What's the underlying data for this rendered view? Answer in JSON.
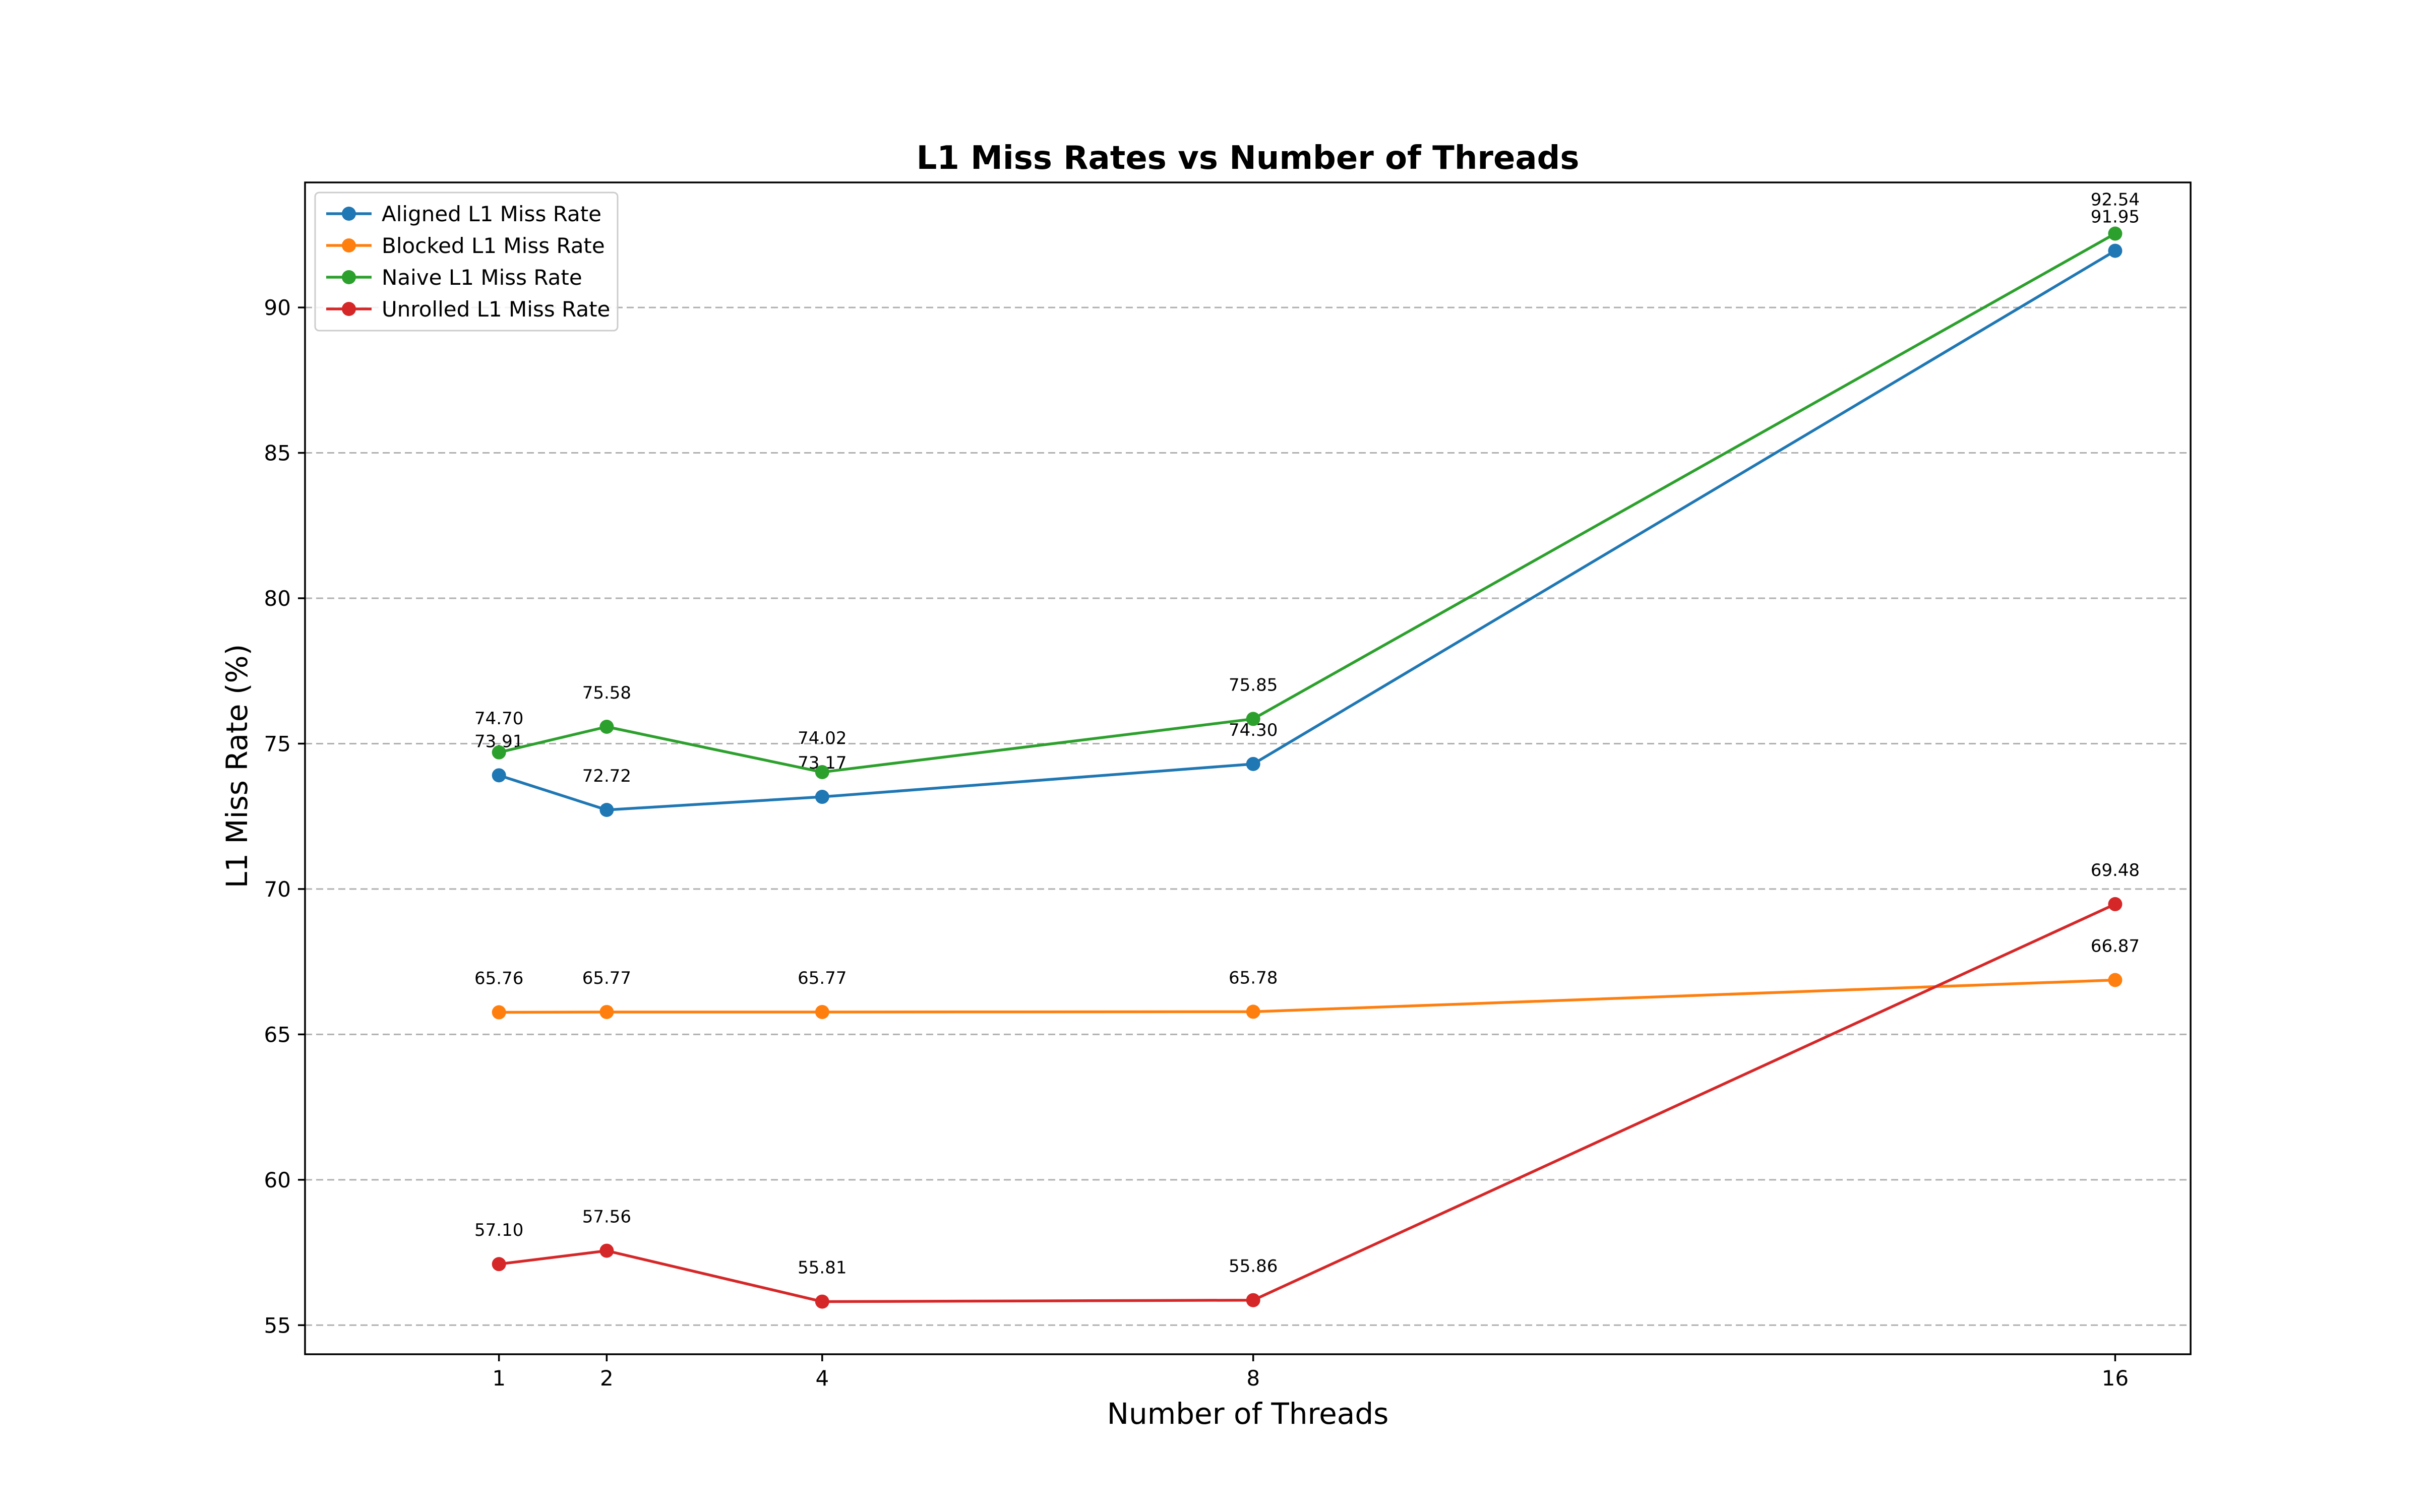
{
  "chart_data": {
    "type": "line",
    "title": "L1 Miss Rates vs Number of Threads",
    "xlabel": "Number of Threads",
    "ylabel": "L1 Miss Rate (%)",
    "x": [
      1,
      2,
      4,
      8,
      16
    ],
    "x_tick_labels": [
      "1",
      "2",
      "4",
      "8",
      "16"
    ],
    "xlim": [
      -0.8,
      16.7
    ],
    "ylim": [
      54.0,
      94.3
    ],
    "y_ticks": [
      55,
      60,
      65,
      70,
      75,
      80,
      85,
      90
    ],
    "y_tick_labels": [
      "55",
      "60",
      "65",
      "70",
      "75",
      "80",
      "85",
      "90"
    ],
    "grid": "horizontal dashed",
    "legend_position": "top-left",
    "series": [
      {
        "name": "Aligned L1 Miss Rate",
        "color": "#1f77b4",
        "values": [
          73.91,
          72.72,
          73.17,
          74.3,
          91.95
        ],
        "labels": [
          "73.91",
          "72.72",
          "73.17",
          "74.30",
          "91.95"
        ]
      },
      {
        "name": "Blocked L1 Miss Rate",
        "color": "#ff7f0e",
        "values": [
          65.76,
          65.77,
          65.77,
          65.78,
          66.87
        ],
        "labels": [
          "65.76",
          "65.77",
          "65.77",
          "65.78",
          "66.87"
        ]
      },
      {
        "name": "Naive L1 Miss Rate",
        "color": "#2ca02c",
        "values": [
          74.7,
          75.58,
          74.02,
          75.85,
          92.54
        ],
        "labels": [
          "74.70",
          "75.58",
          "74.02",
          "75.85",
          "92.54"
        ]
      },
      {
        "name": "Unrolled L1 Miss Rate",
        "color": "#d62728",
        "values": [
          57.1,
          57.56,
          55.81,
          55.86,
          69.48
        ],
        "labels": [
          "57.10",
          "57.56",
          "55.81",
          "55.86",
          "69.48"
        ]
      }
    ]
  }
}
